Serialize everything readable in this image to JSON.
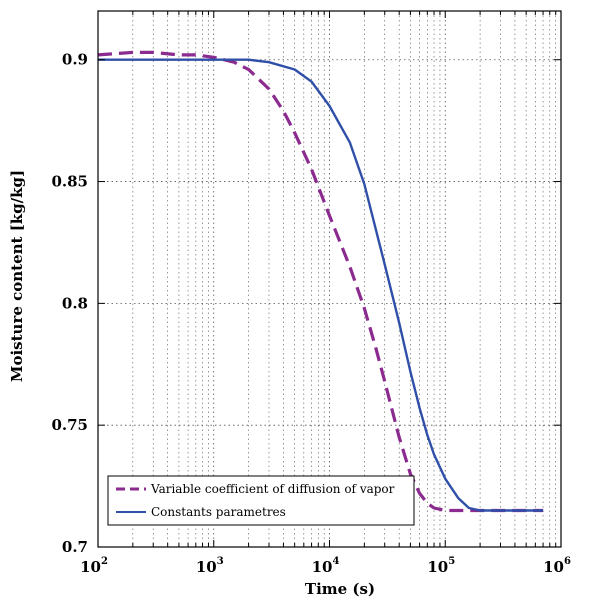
{
  "chart_data": {
    "type": "line",
    "title": "",
    "xlabel": "Time (s)",
    "ylabel": "Moisture content [kg/kg]",
    "xscale": "log",
    "xlim": [
      100,
      1000000
    ],
    "ylim": [
      0.7,
      0.92
    ],
    "grid": true,
    "legend_position": "bottom-left",
    "x_ticks": [
      {
        "base": "10",
        "exp": "2",
        "value": 100
      },
      {
        "base": "10",
        "exp": "3",
        "value": 1000
      },
      {
        "base": "10",
        "exp": "4",
        "value": 10000
      },
      {
        "base": "10",
        "exp": "5",
        "value": 100000
      },
      {
        "base": "10",
        "exp": "6",
        "value": 1000000
      }
    ],
    "y_ticks": [
      {
        "label": "0.7",
        "value": 0.7
      },
      {
        "label": "0.75",
        "value": 0.75
      },
      {
        "label": "0.8",
        "value": 0.8
      },
      {
        "label": "0.85",
        "value": 0.85
      },
      {
        "label": "0.9",
        "value": 0.9
      }
    ],
    "series": [
      {
        "name": "Variable coefficient of diffusion of vapor",
        "style": "dashed",
        "color": "#8B2A8F",
        "points": [
          [
            100,
            0.902
          ],
          [
            200,
            0.903
          ],
          [
            300,
            0.903
          ],
          [
            500,
            0.902
          ],
          [
            700,
            0.902
          ],
          [
            1000,
            0.901
          ],
          [
            1500,
            0.899
          ],
          [
            2000,
            0.896
          ],
          [
            3000,
            0.888
          ],
          [
            4000,
            0.879
          ],
          [
            5000,
            0.87
          ],
          [
            7000,
            0.855
          ],
          [
            10000,
            0.836
          ],
          [
            15000,
            0.815
          ],
          [
            20000,
            0.798
          ],
          [
            25000,
            0.782
          ],
          [
            30000,
            0.768
          ],
          [
            40000,
            0.745
          ],
          [
            50000,
            0.73
          ],
          [
            60000,
            0.722
          ],
          [
            70000,
            0.718
          ],
          [
            80000,
            0.716
          ],
          [
            100000,
            0.715
          ],
          [
            200000,
            0.715
          ],
          [
            700000,
            0.715
          ]
        ]
      },
      {
        "name": "Constants parametres",
        "style": "solid",
        "color": "#2F4FA8",
        "points": [
          [
            100,
            0.9
          ],
          [
            500,
            0.9
          ],
          [
            1000,
            0.9
          ],
          [
            2000,
            0.9
          ],
          [
            3000,
            0.899
          ],
          [
            5000,
            0.896
          ],
          [
            7000,
            0.891
          ],
          [
            10000,
            0.881
          ],
          [
            15000,
            0.866
          ],
          [
            20000,
            0.849
          ],
          [
            30000,
            0.816
          ],
          [
            40000,
            0.792
          ],
          [
            50000,
            0.772
          ],
          [
            60000,
            0.757
          ],
          [
            70000,
            0.746
          ],
          [
            80000,
            0.738
          ],
          [
            100000,
            0.728
          ],
          [
            130000,
            0.72
          ],
          [
            160000,
            0.716
          ],
          [
            200000,
            0.715
          ],
          [
            700000,
            0.715
          ]
        ]
      }
    ]
  },
  "colors": {
    "variable": "#8B2A8F",
    "constant": "#2F4FA8",
    "grid": "#555555"
  }
}
